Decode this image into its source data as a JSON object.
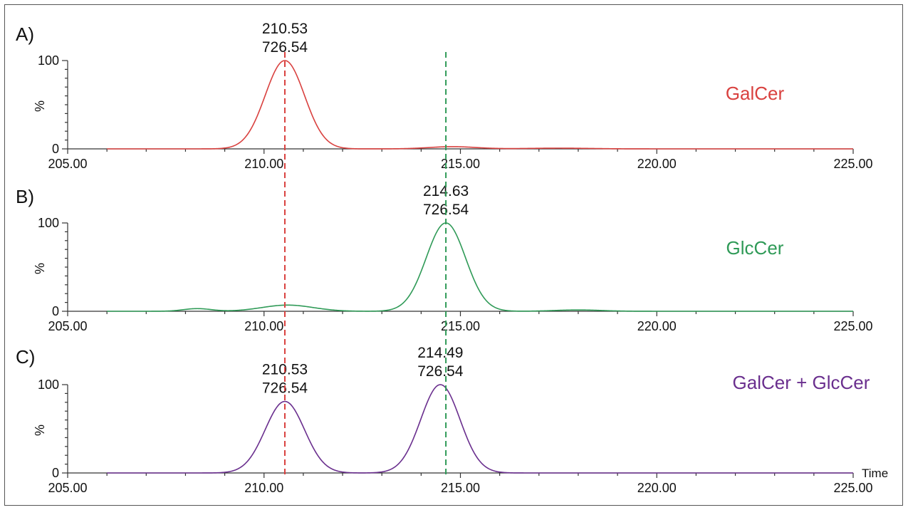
{
  "chart_data": [
    {
      "type": "line",
      "panel_label": "A)",
      "sample_label": "GalCer",
      "color": "#d9413f",
      "ylabel": "%",
      "y_ticks": [
        "0",
        "100"
      ],
      "x_tick_labels": [
        "205.00",
        "210.00",
        "215.00",
        "220.00",
        "225.00"
      ],
      "xlim": [
        205,
        225
      ],
      "ylim": [
        0,
        100
      ],
      "peaks": [
        {
          "rt": 210.53,
          "label_rt": "210.53",
          "label_mz": "726.54",
          "height": 100,
          "width": 0.5
        },
        {
          "rt": 214.8,
          "label_rt": "",
          "label_mz": "",
          "height": 2.5,
          "width": 0.6
        },
        {
          "rt": 217.5,
          "label_rt": "",
          "label_mz": "",
          "height": 0.8,
          "width": 0.8
        }
      ]
    },
    {
      "type": "line",
      "panel_label": "B)",
      "sample_label": "GlcCer",
      "color": "#2f9a57",
      "ylabel": "%",
      "y_ticks": [
        "0",
        "100"
      ],
      "x_tick_labels": [
        "205.00",
        "210.00",
        "215.00",
        "220.00",
        "225.00"
      ],
      "xlim": [
        205,
        225
      ],
      "ylim": [
        0,
        100
      ],
      "peaks": [
        {
          "rt": 214.63,
          "label_rt": "214.63",
          "label_mz": "726.54",
          "height": 100,
          "width": 0.5
        },
        {
          "rt": 210.6,
          "label_rt": "",
          "label_mz": "",
          "height": 7,
          "width": 0.65
        },
        {
          "rt": 208.3,
          "label_rt": "",
          "label_mz": "",
          "height": 3,
          "width": 0.35
        },
        {
          "rt": 218.0,
          "label_rt": "",
          "label_mz": "",
          "height": 1.5,
          "width": 0.6
        }
      ]
    },
    {
      "type": "line",
      "panel_label": "C)",
      "sample_label": "GalCer + GlcCer",
      "color": "#6a2f8e",
      "ylabel": "%",
      "y_ticks": [
        "0",
        "100"
      ],
      "x_tick_labels": [
        "205.00",
        "210.00",
        "215.00",
        "220.00",
        "225.00"
      ],
      "x_axis_title": "Time",
      "xlim": [
        205,
        225
      ],
      "ylim": [
        0,
        100
      ],
      "peaks": [
        {
          "rt": 210.53,
          "label_rt": "210.53",
          "label_mz": "726.54",
          "height": 81,
          "width": 0.5
        },
        {
          "rt": 214.49,
          "label_rt": "214.49",
          "label_mz": "726.54",
          "height": 100,
          "width": 0.5
        }
      ]
    }
  ],
  "reference_lines": [
    {
      "rt": 210.53,
      "color": "#d9413f"
    },
    {
      "rt": 214.63,
      "color": "#2f9a57"
    }
  ]
}
